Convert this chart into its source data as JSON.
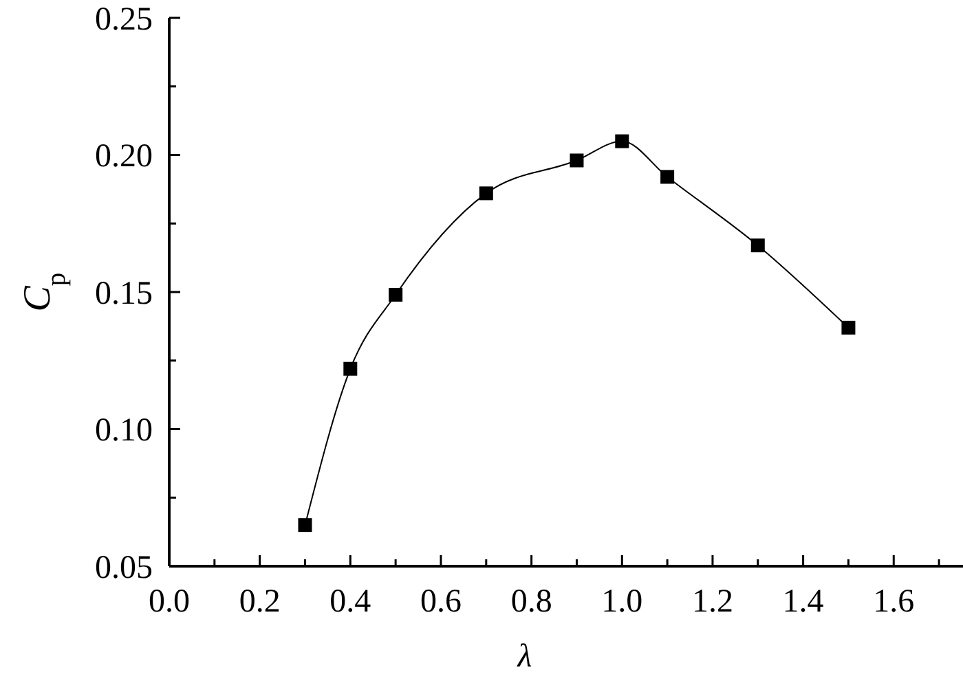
{
  "chart_data": {
    "type": "line",
    "xlabel": "λ",
    "ylabel": "C$_{p}$",
    "x": [
      0.3,
      0.4,
      0.5,
      0.7,
      0.9,
      1.0,
      1.1,
      1.3,
      1.5
    ],
    "series": [
      {
        "color": "#000000",
        "values": [
          0.065,
          0.122,
          0.149,
          0.186,
          0.198,
          0.205,
          0.192,
          0.167,
          0.137
        ]
      }
    ],
    "marker": "square",
    "line_style": "solid",
    "grid": false,
    "xlim": [
      0,
      1.75
    ],
    "xticks": [
      {
        "value": 0,
        "label": "0.0"
      },
      {
        "value": 0.1,
        "label": null
      },
      {
        "value": 0.2,
        "label": "0.2"
      },
      {
        "value": 0.3,
        "label": null
      },
      {
        "value": 0.4,
        "label": "0.4"
      },
      {
        "value": 0.5,
        "label": null
      },
      {
        "value": 0.6,
        "label": "0.6"
      },
      {
        "value": 0.7,
        "label": null
      },
      {
        "value": 0.8,
        "label": "0.8"
      },
      {
        "value": 0.9,
        "label": null
      },
      {
        "value": 1.0,
        "label": "1.0"
      },
      {
        "value": 1.1,
        "label": null
      },
      {
        "value": 1.2,
        "label": "1.2"
      },
      {
        "value": 1.3,
        "label": null
      },
      {
        "value": 1.4,
        "label": "1.4"
      },
      {
        "value": 1.5,
        "label": null
      },
      {
        "value": 1.6,
        "label": "1.6"
      },
      {
        "value": 1.7,
        "label": null
      }
    ],
    "ylim": [
      0.05,
      0.25
    ],
    "yticks": [
      {
        "value": 0.05,
        "label": "0.05"
      },
      {
        "value": 0.075,
        "label": null
      },
      {
        "value": 0.1,
        "label": "0.10"
      },
      {
        "value": 0.125,
        "label": null
      },
      {
        "value": 0.15,
        "label": "0.15"
      },
      {
        "value": 0.175,
        "label": null
      },
      {
        "value": 0.2,
        "label": "0.20"
      },
      {
        "value": 0.225,
        "label": null
      },
      {
        "value": 0.25,
        "label": "0.25"
      }
    ]
  }
}
